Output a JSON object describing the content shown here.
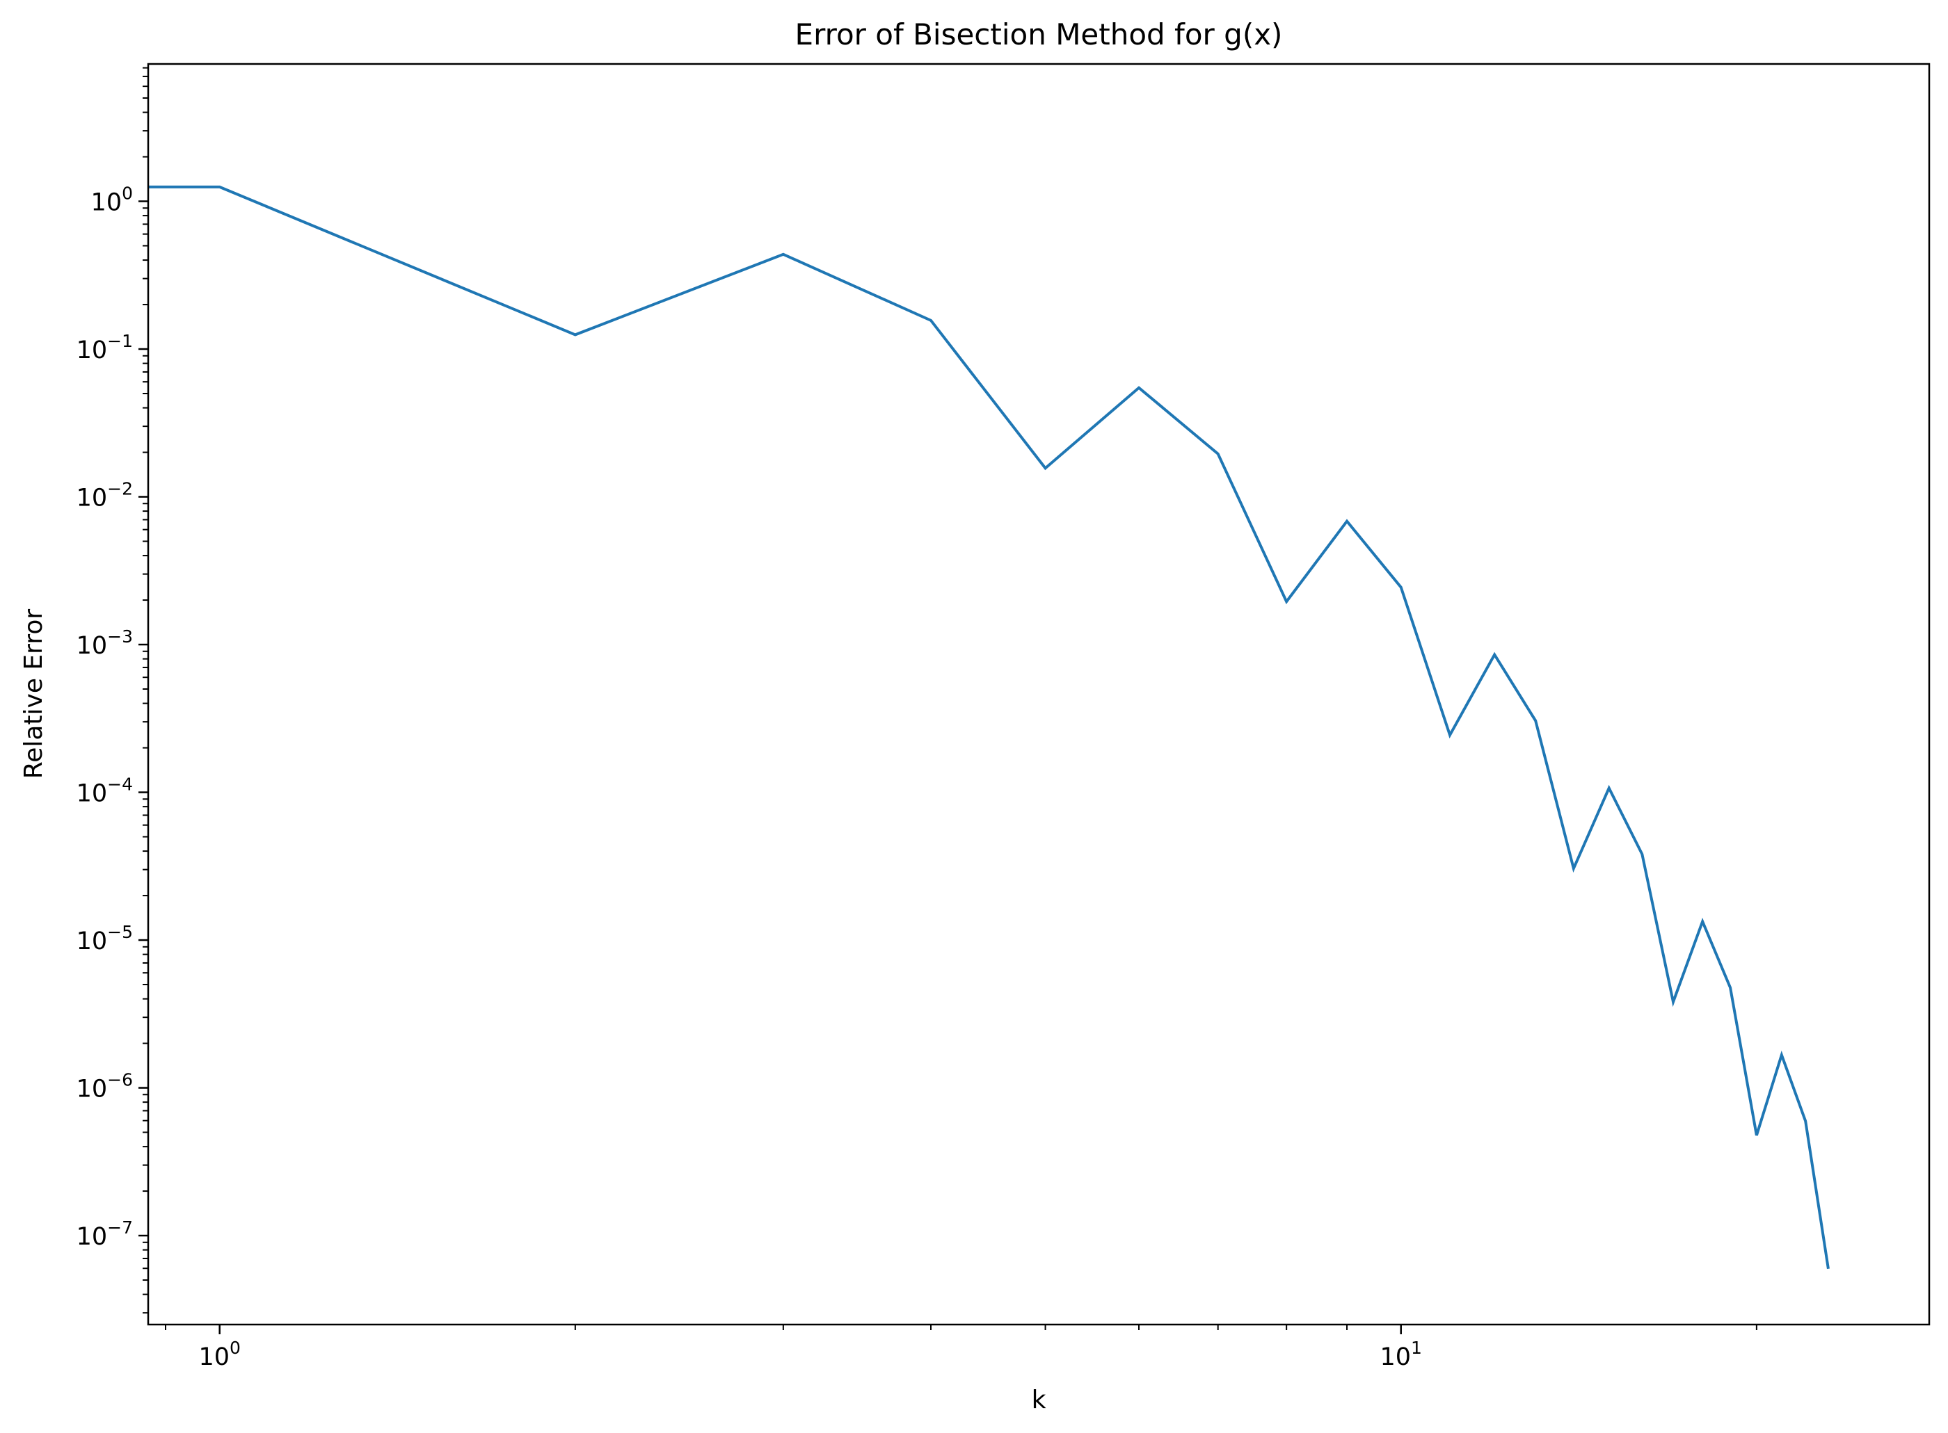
{
  "chart_data": {
    "type": "line",
    "title": "Error of Bisection Method for g(x)",
    "xlabel": "k",
    "ylabel": "Relative Error",
    "xscale": "log",
    "yscale": "log",
    "xlim": [
      0.87,
      28
    ],
    "ylim": [
      2.5e-08,
      8.5
    ],
    "grid": false,
    "legend": "none",
    "x_ticks": [
      {
        "value": 1,
        "base": "10",
        "exp": "0"
      },
      {
        "value": 10,
        "base": "10",
        "exp": "1"
      }
    ],
    "y_ticks": [
      {
        "value": 1,
        "base": "10",
        "exp": "0"
      },
      {
        "value": 0.1,
        "base": "10",
        "exp": "−1"
      },
      {
        "value": 0.01,
        "base": "10",
        "exp": "−2"
      },
      {
        "value": 0.001,
        "base": "10",
        "exp": "−3"
      },
      {
        "value": 0.0001,
        "base": "10",
        "exp": "−4"
      },
      {
        "value": 1e-05,
        "base": "10",
        "exp": "−5"
      },
      {
        "value": 1e-06,
        "base": "10",
        "exp": "−6"
      },
      {
        "value": 1e-07,
        "base": "10",
        "exp": "−7"
      }
    ],
    "series": [
      {
        "color": "#1f77b4",
        "x": [
          0,
          1,
          2,
          3,
          4,
          5,
          6,
          7,
          8,
          9,
          10,
          11,
          12,
          13,
          14,
          15,
          16,
          17,
          18,
          19,
          20,
          21,
          22,
          23
        ],
        "y": [
          1.25,
          1.25,
          0.125,
          0.4375,
          0.15625,
          0.015625,
          0.0546875,
          0.01953125,
          0.001953125,
          0.0068359375,
          0.00244140625,
          0.000244140625,
          0.0008544921875,
          0.00030517578125,
          3.0517578125e-05,
          0.0001068115234375,
          3.814697265625e-05,
          3.814697265625e-06,
          1.33514404296875e-05,
          4.76837158203125e-06,
          4.76837158203125e-07,
          1.6689300537109375e-06,
          5.960464477539062e-07,
          5.960464477539062e-08
        ]
      }
    ]
  }
}
